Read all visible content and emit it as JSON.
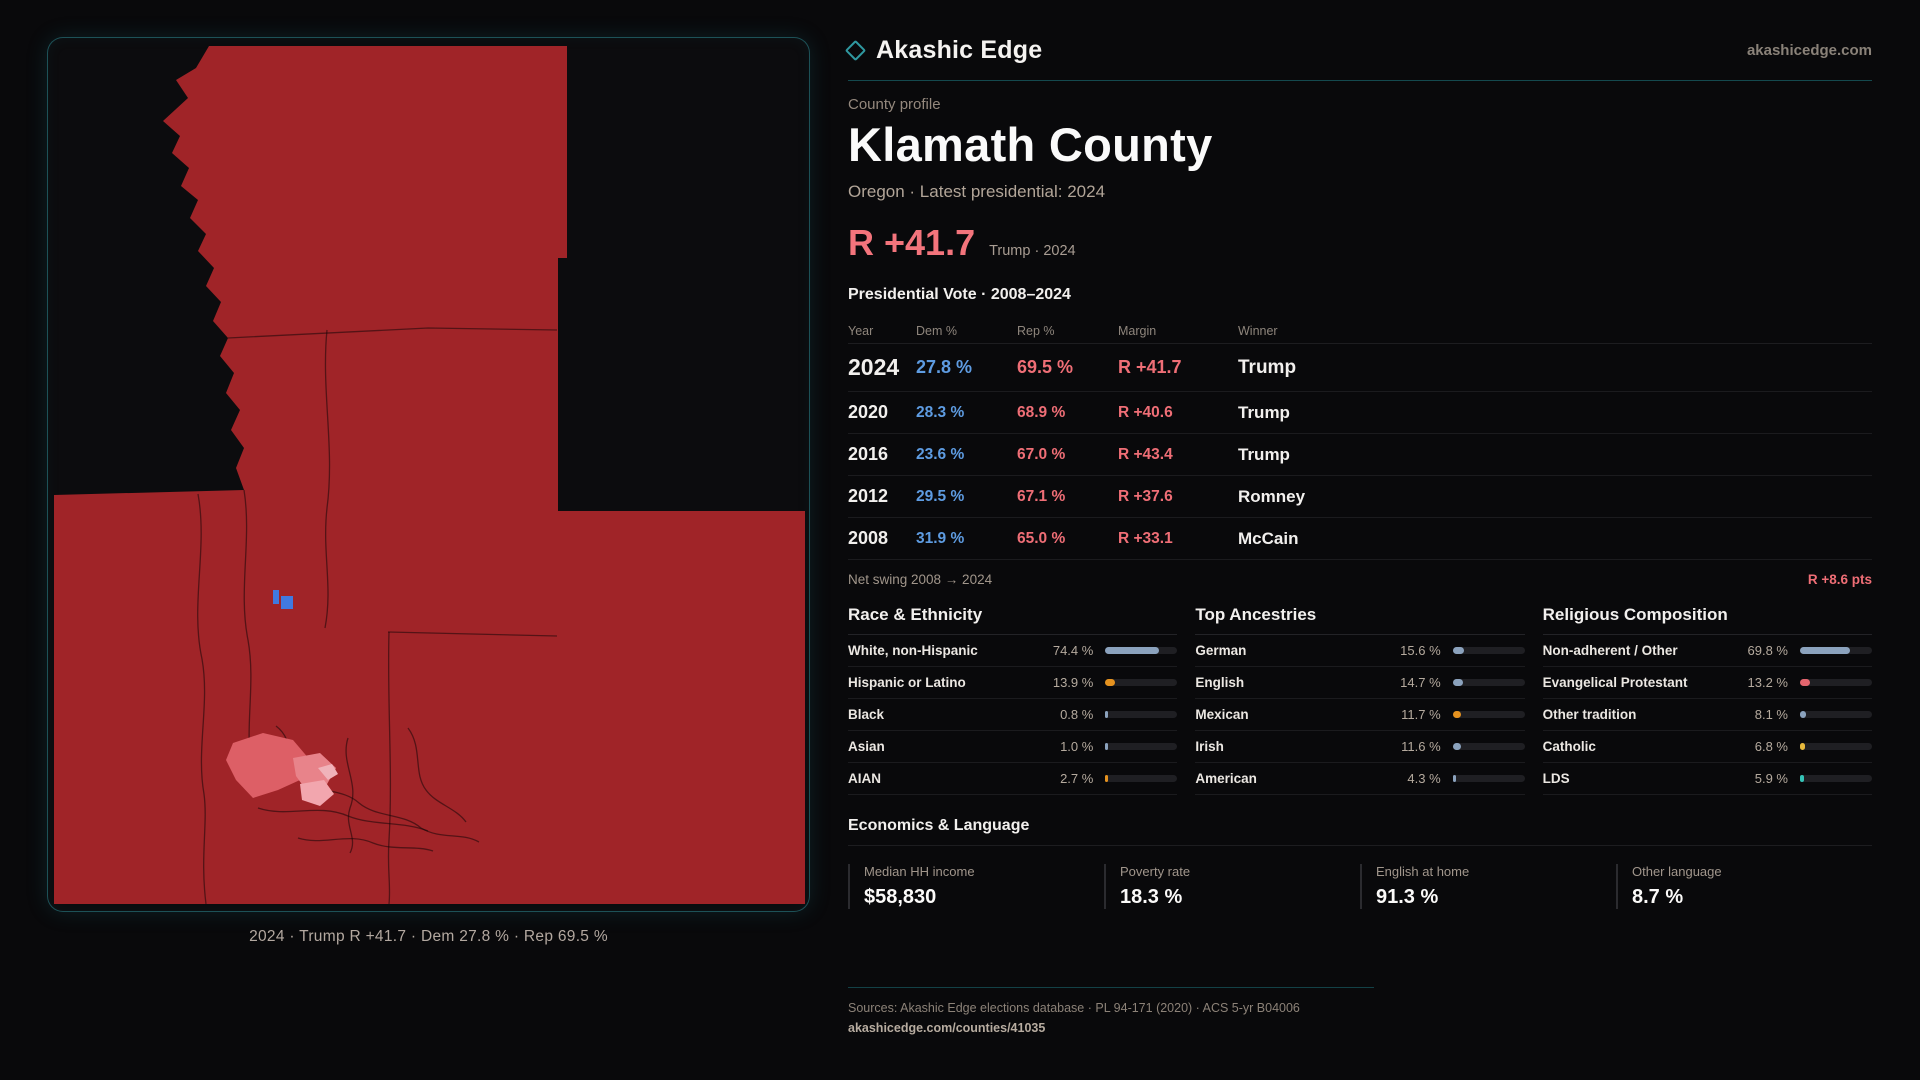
{
  "brand": {
    "name": "Akashic Edge",
    "domain": "akashicedge.com"
  },
  "profile": {
    "eyebrow": "County profile",
    "title": "Klamath County",
    "subtitle": "Oregon · Latest presidential: 2024",
    "headline_margin": "R +41.7",
    "headline_context": "Trump · 2024"
  },
  "map": {
    "caption": "2024 · Trump R +41.7 · Dem 27.8 % · Rep 69.5 %"
  },
  "vote_table": {
    "title": "Presidential Vote · 2008–2024",
    "columns": [
      "Year",
      "Dem %",
      "Rep %",
      "Margin",
      "Winner"
    ],
    "rows": [
      {
        "year": "2024",
        "dem": "27.8 %",
        "rep": "69.5 %",
        "margin": "R +41.7",
        "winner": "Trump",
        "emphasis": true
      },
      {
        "year": "2020",
        "dem": "28.3 %",
        "rep": "68.9 %",
        "margin": "R +40.6",
        "winner": "Trump",
        "emphasis": false
      },
      {
        "year": "2016",
        "dem": "23.6 %",
        "rep": "67.0 %",
        "margin": "R +43.4",
        "winner": "Trump",
        "emphasis": false
      },
      {
        "year": "2012",
        "dem": "29.5 %",
        "rep": "67.1 %",
        "margin": "R +37.6",
        "winner": "Romney",
        "emphasis": false
      },
      {
        "year": "2008",
        "dem": "31.9 %",
        "rep": "65.0 %",
        "margin": "R +33.1",
        "winner": "McCain",
        "emphasis": false
      }
    ],
    "net_swing_label": "Net swing 2008 → 2024",
    "net_swing_value": "R +8.6 pts"
  },
  "demographics": [
    {
      "title": "Race & Ethnicity",
      "rows": [
        {
          "label": "White, non-Hispanic",
          "value": "74.4 %",
          "pct": 74.4,
          "color": "slate"
        },
        {
          "label": "Hispanic or Latino",
          "value": "13.9 %",
          "pct": 13.9,
          "color": "orange"
        },
        {
          "label": "Black",
          "value": "0.8 %",
          "pct": 0.8,
          "color": "slate"
        },
        {
          "label": "Asian",
          "value": "1.0 %",
          "pct": 1.0,
          "color": "slate"
        },
        {
          "label": "AIAN",
          "value": "2.7 %",
          "pct": 2.7,
          "color": "orange"
        }
      ]
    },
    {
      "title": "Top Ancestries",
      "rows": [
        {
          "label": "German",
          "value": "15.6 %",
          "pct": 15.6,
          "color": "slate"
        },
        {
          "label": "English",
          "value": "14.7 %",
          "pct": 14.7,
          "color": "slate"
        },
        {
          "label": "Mexican",
          "value": "11.7 %",
          "pct": 11.7,
          "color": "orange"
        },
        {
          "label": "Irish",
          "value": "11.6 %",
          "pct": 11.6,
          "color": "slate"
        },
        {
          "label": "American",
          "value": "4.3 %",
          "pct": 4.3,
          "color": "slate"
        }
      ]
    },
    {
      "title": "Religious Composition",
      "rows": [
        {
          "label": "Non-adherent / Other",
          "value": "69.8 %",
          "pct": 69.8,
          "color": "slate"
        },
        {
          "label": "Evangelical Protestant",
          "value": "13.2 %",
          "pct": 13.2,
          "color": "red"
        },
        {
          "label": "Other tradition",
          "value": "8.1 %",
          "pct": 8.1,
          "color": "slate"
        },
        {
          "label": "Catholic",
          "value": "6.8 %",
          "pct": 6.8,
          "color": "amber"
        },
        {
          "label": "LDS",
          "value": "5.9 %",
          "pct": 5.9,
          "color": "teal"
        }
      ]
    }
  ],
  "economics": {
    "title": "Economics & Language",
    "stats": [
      {
        "label": "Median HH income",
        "value": "$58,830"
      },
      {
        "label": "Poverty rate",
        "value": "18.3 %"
      },
      {
        "label": "English at home",
        "value": "91.3 %"
      },
      {
        "label": "Other language",
        "value": "8.7 %"
      }
    ]
  },
  "footer": {
    "sources": "Sources: Akashic Edge elections database · PL 94-171 (2020) · ACS 5-yr B04006",
    "permalink": "akashicedge.com/counties/41035"
  },
  "colors": {
    "accent_teal": "#2f98a0",
    "dem_blue": "#5e9ce2",
    "rep_red": "#ef6e76",
    "county_fill": "#a02428",
    "bar_palette": {
      "slate": "#8ba2bd",
      "orange": "#e5921f",
      "red": "#e4656e",
      "amber": "#e7b93c",
      "teal": "#35c3b6"
    }
  }
}
